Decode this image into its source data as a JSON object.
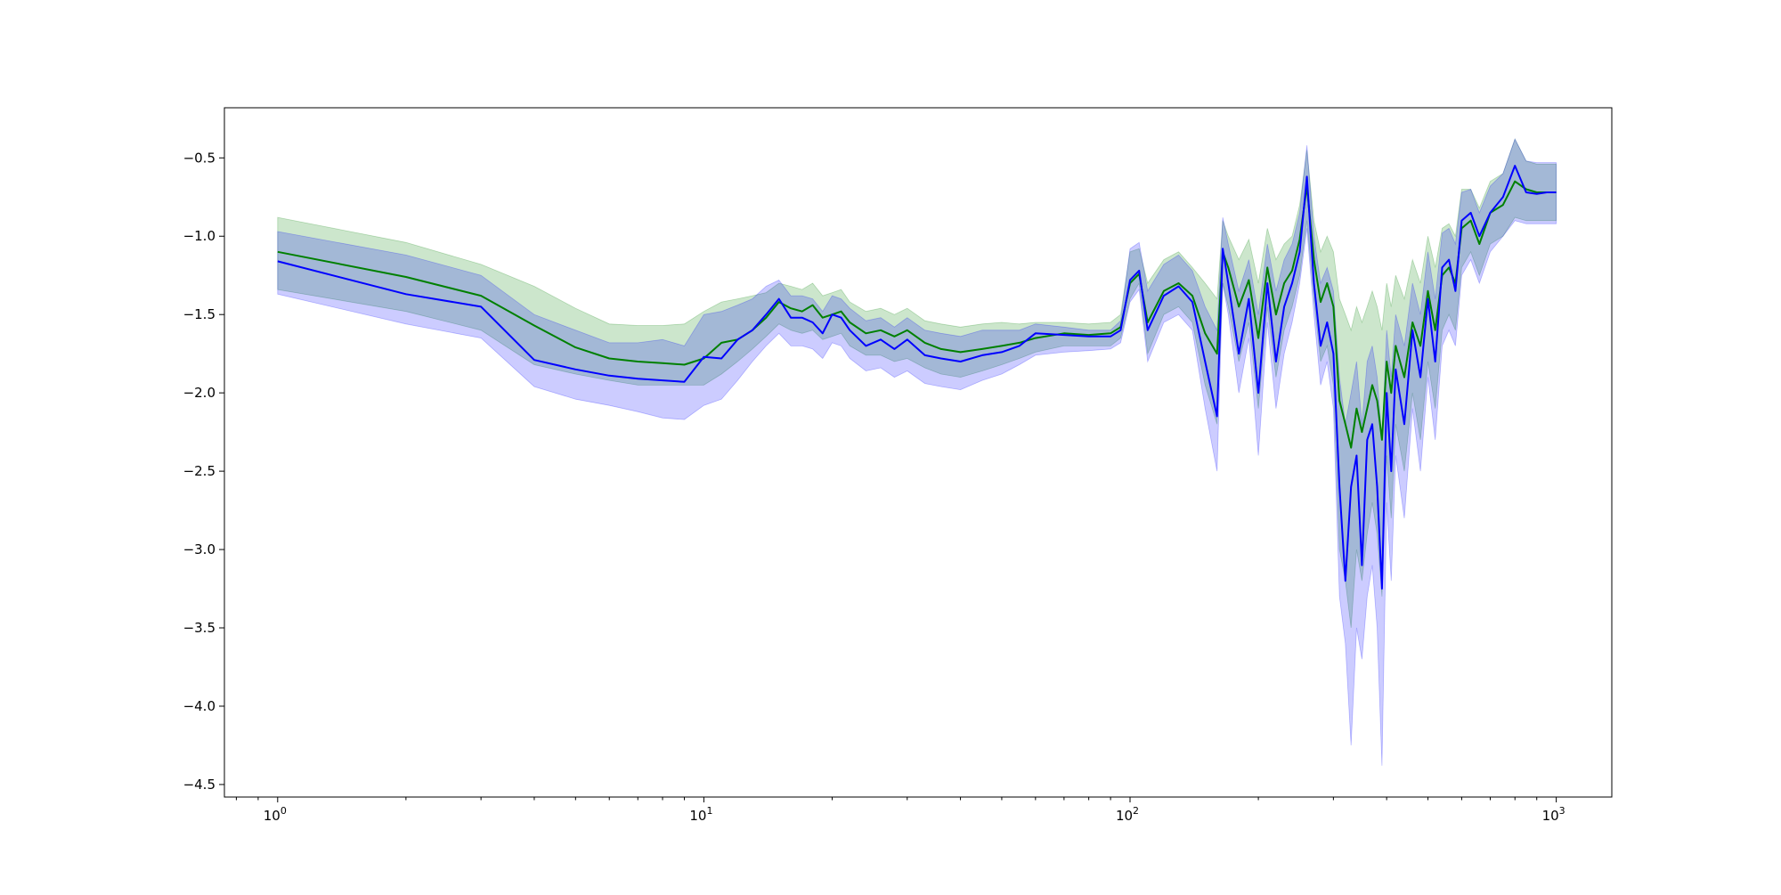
{
  "chart_data": {
    "type": "line",
    "title": "",
    "xlabel": "",
    "ylabel": "",
    "x_scale": "log",
    "xlim": [
      0.75,
      1350
    ],
    "ylim": [
      -4.58,
      -0.18
    ],
    "grid": false,
    "legend": "none",
    "x_ticks": [
      {
        "value": 1,
        "base": "10",
        "exp": "0"
      },
      {
        "value": 10,
        "base": "10",
        "exp": "1"
      },
      {
        "value": 100,
        "base": "10",
        "exp": "2"
      },
      {
        "value": 1000,
        "base": "10",
        "exp": "3"
      }
    ],
    "y_ticks": [
      {
        "value": -0.5,
        "label": "−0.5"
      },
      {
        "value": -1.0,
        "label": "−1.0"
      },
      {
        "value": -1.5,
        "label": "−1.5"
      },
      {
        "value": -2.0,
        "label": "−2.0"
      },
      {
        "value": -2.5,
        "label": "−2.5"
      },
      {
        "value": -3.0,
        "label": "−3.0"
      },
      {
        "value": -3.5,
        "label": "−3.5"
      },
      {
        "value": -4.0,
        "label": "−4.0"
      },
      {
        "value": -4.5,
        "label": "−4.5"
      }
    ],
    "series": [
      {
        "color": "#008000",
        "band_color": "#008000",
        "band_opacity": 0.2,
        "x": [
          1,
          2,
          3,
          4,
          5,
          6,
          7,
          8,
          9,
          10,
          11,
          12,
          13,
          14,
          15,
          16,
          17,
          18,
          19,
          20,
          21,
          22,
          24,
          26,
          28,
          30,
          33,
          36,
          40,
          45,
          50,
          55,
          60,
          70,
          80,
          90,
          95,
          100,
          105,
          110,
          120,
          130,
          140,
          150,
          160,
          165,
          170,
          180,
          190,
          200,
          210,
          220,
          230,
          240,
          250,
          260,
          270,
          280,
          290,
          300,
          310,
          320,
          330,
          340,
          350,
          360,
          370,
          380,
          390,
          400,
          410,
          420,
          440,
          460,
          480,
          500,
          520,
          540,
          560,
          580,
          600,
          630,
          660,
          700,
          750,
          800,
          850,
          900,
          950,
          1000
        ],
        "y": [
          -1.1,
          -1.26,
          -1.38,
          -1.57,
          -1.71,
          -1.78,
          -1.8,
          -1.81,
          -1.82,
          -1.78,
          -1.68,
          -1.66,
          -1.6,
          -1.52,
          -1.42,
          -1.46,
          -1.48,
          -1.44,
          -1.52,
          -1.5,
          -1.48,
          -1.55,
          -1.62,
          -1.6,
          -1.64,
          -1.6,
          -1.68,
          -1.72,
          -1.74,
          -1.72,
          -1.7,
          -1.68,
          -1.65,
          -1.62,
          -1.63,
          -1.62,
          -1.58,
          -1.3,
          -1.24,
          -1.55,
          -1.35,
          -1.3,
          -1.38,
          -1.62,
          -1.75,
          -1.1,
          -1.2,
          -1.45,
          -1.28,
          -1.65,
          -1.2,
          -1.5,
          -1.3,
          -1.22,
          -1.02,
          -0.68,
          -1.15,
          -1.42,
          -1.3,
          -1.45,
          -2.05,
          -2.2,
          -2.35,
          -2.1,
          -2.25,
          -2.1,
          -1.95,
          -2.05,
          -2.3,
          -1.8,
          -2.0,
          -1.7,
          -1.9,
          -1.55,
          -1.7,
          -1.35,
          -1.6,
          -1.25,
          -1.2,
          -1.3,
          -0.95,
          -0.9,
          -1.05,
          -0.85,
          -0.8,
          -0.65,
          -0.7,
          -0.72,
          -0.72,
          -0.72
        ],
        "lower": [
          -1.34,
          -1.48,
          -1.6,
          -1.82,
          -1.88,
          -1.92,
          -1.95,
          -1.95,
          -1.95,
          -1.95,
          -1.88,
          -1.8,
          -1.72,
          -1.64,
          -1.56,
          -1.6,
          -1.62,
          -1.6,
          -1.66,
          -1.64,
          -1.62,
          -1.7,
          -1.76,
          -1.76,
          -1.8,
          -1.78,
          -1.84,
          -1.88,
          -1.9,
          -1.86,
          -1.82,
          -1.78,
          -1.74,
          -1.7,
          -1.7,
          -1.7,
          -1.65,
          -1.4,
          -1.3,
          -1.75,
          -1.5,
          -1.45,
          -1.55,
          -1.95,
          -2.2,
          -1.3,
          -1.45,
          -1.8,
          -1.55,
          -2.1,
          -1.45,
          -1.9,
          -1.6,
          -1.45,
          -1.25,
          -0.9,
          -1.4,
          -1.8,
          -1.7,
          -1.95,
          -3.0,
          -3.2,
          -3.5,
          -3.0,
          -3.2,
          -2.9,
          -2.7,
          -2.9,
          -3.3,
          -2.4,
          -2.8,
          -2.2,
          -2.5,
          -2.0,
          -2.3,
          -1.8,
          -2.1,
          -1.6,
          -1.5,
          -1.6,
          -1.2,
          -1.1,
          -1.25,
          -1.05,
          -1.0,
          -0.88,
          -0.9,
          -0.9,
          -0.9,
          -0.9
        ],
        "upper": [
          -0.88,
          -1.04,
          -1.18,
          -1.32,
          -1.46,
          -1.56,
          -1.57,
          -1.57,
          -1.56,
          -1.48,
          -1.42,
          -1.4,
          -1.38,
          -1.36,
          -1.3,
          -1.32,
          -1.34,
          -1.3,
          -1.38,
          -1.36,
          -1.34,
          -1.42,
          -1.48,
          -1.46,
          -1.5,
          -1.46,
          -1.54,
          -1.56,
          -1.58,
          -1.56,
          -1.55,
          -1.56,
          -1.55,
          -1.55,
          -1.56,
          -1.55,
          -1.5,
          -1.1,
          -1.08,
          -1.3,
          -1.15,
          -1.1,
          -1.2,
          -1.3,
          -1.4,
          -0.9,
          -1.0,
          -1.15,
          -1.02,
          -1.3,
          -0.95,
          -1.15,
          -1.05,
          -1.0,
          -0.8,
          -0.45,
          -0.9,
          -1.1,
          -1.0,
          -1.1,
          -1.4,
          -1.5,
          -1.6,
          -1.45,
          -1.55,
          -1.45,
          -1.35,
          -1.45,
          -1.6,
          -1.3,
          -1.45,
          -1.25,
          -1.4,
          -1.15,
          -1.3,
          -1.0,
          -1.2,
          -0.95,
          -0.92,
          -1.0,
          -0.7,
          -0.7,
          -0.82,
          -0.65,
          -0.6,
          -0.38,
          -0.52,
          -0.54,
          -0.54,
          -0.54
        ]
      },
      {
        "color": "#0000ff",
        "band_color": "#0000ff",
        "band_opacity": 0.2,
        "x": [
          1,
          2,
          3,
          4,
          5,
          6,
          7,
          8,
          9,
          10,
          11,
          12,
          13,
          14,
          15,
          16,
          17,
          18,
          19,
          20,
          21,
          22,
          24,
          26,
          28,
          30,
          33,
          36,
          40,
          45,
          50,
          55,
          60,
          70,
          80,
          90,
          95,
          100,
          105,
          110,
          120,
          130,
          140,
          150,
          160,
          165,
          170,
          180,
          190,
          200,
          210,
          220,
          230,
          240,
          250,
          260,
          270,
          280,
          290,
          300,
          310,
          320,
          330,
          340,
          350,
          360,
          370,
          380,
          390,
          400,
          410,
          420,
          440,
          460,
          480,
          500,
          520,
          540,
          560,
          580,
          600,
          630,
          660,
          700,
          750,
          800,
          850,
          900,
          950,
          1000
        ],
        "y": [
          -1.16,
          -1.37,
          -1.45,
          -1.79,
          -1.85,
          -1.89,
          -1.91,
          -1.92,
          -1.93,
          -1.77,
          -1.78,
          -1.66,
          -1.6,
          -1.5,
          -1.4,
          -1.52,
          -1.52,
          -1.55,
          -1.62,
          -1.5,
          -1.52,
          -1.6,
          -1.7,
          -1.66,
          -1.72,
          -1.66,
          -1.76,
          -1.78,
          -1.8,
          -1.76,
          -1.74,
          -1.7,
          -1.62,
          -1.63,
          -1.64,
          -1.64,
          -1.6,
          -1.28,
          -1.22,
          -1.6,
          -1.38,
          -1.32,
          -1.42,
          -1.8,
          -2.15,
          -1.08,
          -1.3,
          -1.75,
          -1.4,
          -2.0,
          -1.3,
          -1.8,
          -1.45,
          -1.3,
          -1.1,
          -0.62,
          -1.3,
          -1.7,
          -1.55,
          -1.75,
          -2.6,
          -3.2,
          -2.6,
          -2.4,
          -3.1,
          -2.3,
          -2.2,
          -2.6,
          -3.25,
          -2.0,
          -2.5,
          -1.85,
          -2.2,
          -1.6,
          -1.9,
          -1.4,
          -1.8,
          -1.2,
          -1.15,
          -1.35,
          -0.9,
          -0.85,
          -1.0,
          -0.85,
          -0.75,
          -0.55,
          -0.72,
          -0.73,
          -0.72,
          -0.72
        ],
        "lower": [
          -1.37,
          -1.56,
          -1.65,
          -1.96,
          -2.04,
          -2.08,
          -2.12,
          -2.16,
          -2.17,
          -2.08,
          -2.04,
          -1.92,
          -1.8,
          -1.7,
          -1.62,
          -1.7,
          -1.7,
          -1.72,
          -1.78,
          -1.68,
          -1.7,
          -1.78,
          -1.86,
          -1.84,
          -1.9,
          -1.86,
          -1.94,
          -1.96,
          -1.98,
          -1.92,
          -1.88,
          -1.82,
          -1.76,
          -1.74,
          -1.73,
          -1.72,
          -1.68,
          -1.42,
          -1.34,
          -1.8,
          -1.55,
          -1.5,
          -1.6,
          -2.1,
          -2.5,
          -1.3,
          -1.5,
          -2.0,
          -1.65,
          -2.4,
          -1.55,
          -2.1,
          -1.75,
          -1.55,
          -1.3,
          -0.95,
          -1.5,
          -1.95,
          -1.8,
          -2.1,
          -3.3,
          -3.6,
          -4.25,
          -3.5,
          -3.7,
          -3.3,
          -3.1,
          -3.5,
          -4.38,
          -2.7,
          -3.2,
          -2.4,
          -2.8,
          -2.1,
          -2.5,
          -1.9,
          -2.3,
          -1.7,
          -1.6,
          -1.7,
          -1.25,
          -1.15,
          -1.3,
          -1.1,
          -1.0,
          -0.9,
          -0.92,
          -0.92,
          -0.92,
          -0.92
        ],
        "upper": [
          -0.97,
          -1.12,
          -1.25,
          -1.5,
          -1.6,
          -1.68,
          -1.68,
          -1.66,
          -1.7,
          -1.5,
          -1.48,
          -1.44,
          -1.4,
          -1.32,
          -1.28,
          -1.38,
          -1.38,
          -1.4,
          -1.48,
          -1.38,
          -1.4,
          -1.46,
          -1.54,
          -1.52,
          -1.58,
          -1.52,
          -1.6,
          -1.62,
          -1.64,
          -1.6,
          -1.6,
          -1.6,
          -1.56,
          -1.58,
          -1.6,
          -1.6,
          -1.54,
          -1.08,
          -1.04,
          -1.35,
          -1.18,
          -1.12,
          -1.22,
          -1.45,
          -1.6,
          -0.88,
          -1.05,
          -1.35,
          -1.15,
          -1.5,
          -1.05,
          -1.35,
          -1.15,
          -1.05,
          -0.85,
          -0.42,
          -1.0,
          -1.3,
          -1.2,
          -1.35,
          -1.9,
          -2.2,
          -2.0,
          -1.8,
          -2.2,
          -1.8,
          -1.7,
          -1.9,
          -2.3,
          -1.6,
          -1.9,
          -1.5,
          -1.7,
          -1.3,
          -1.5,
          -1.1,
          -1.4,
          -0.98,
          -0.95,
          -1.05,
          -0.72,
          -0.7,
          -0.85,
          -0.68,
          -0.6,
          -0.38,
          -0.52,
          -0.53,
          -0.53,
          -0.53
        ]
      }
    ]
  }
}
